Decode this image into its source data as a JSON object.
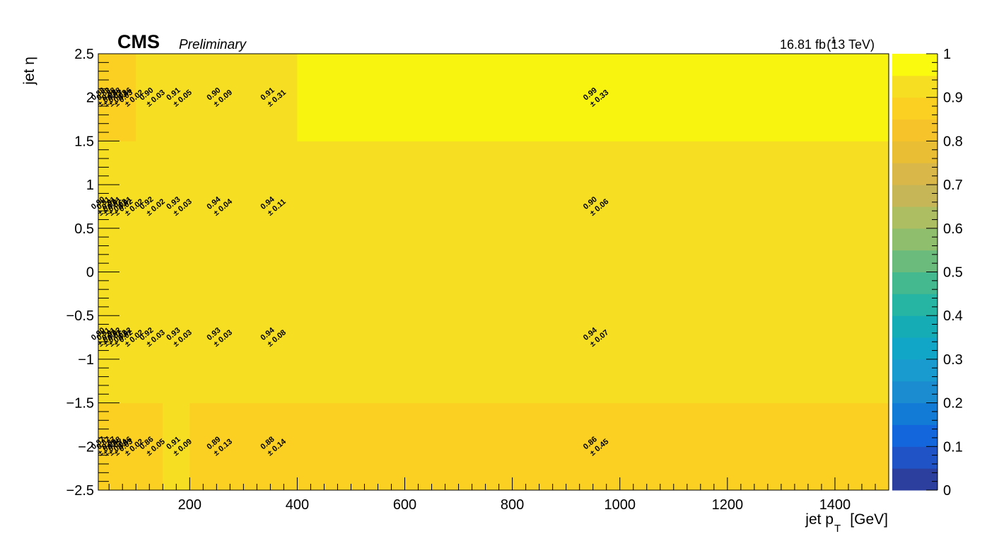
{
  "header": {
    "experiment": "CMS",
    "status": "Preliminary",
    "lumi_value": "16.81 fb",
    "lumi_exp": "-1",
    "energy": "(13 TeV)"
  },
  "chart_data": {
    "type": "heatmap",
    "title": "",
    "xlabel_main": "jet p",
    "xlabel_sub": "T",
    "xlabel_unit": "[GeV]",
    "ylabel": "jet η",
    "xlim": [
      30,
      1500
    ],
    "ylim": [
      -2.5,
      2.5
    ],
    "zlim": [
      0,
      1
    ],
    "x_ticks": [
      200,
      400,
      600,
      800,
      1000,
      1200,
      1400
    ],
    "x_tick_labels": [
      "200",
      "400",
      "600",
      "800",
      "1000",
      "1200",
      "1400"
    ],
    "y_ticks": [
      -2.5,
      -2,
      -1.5,
      -1,
      -0.5,
      0,
      0.5,
      1,
      1.5,
      2,
      2.5
    ],
    "y_tick_labels": [
      "−2.5",
      "−2",
      "−1.5",
      "−1",
      "−0.5",
      "0",
      "0.5",
      "1",
      "1.5",
      "2",
      "2.5"
    ],
    "x_bin_edges": [
      30,
      40,
      50,
      60,
      70,
      100,
      150,
      200,
      300,
      400,
      1500
    ],
    "y_bin_edges": [
      -2.5,
      -1.5,
      0,
      1.5,
      2.5
    ],
    "eta_rows": [
      {
        "eta_low": -2.5,
        "eta_high": -1.5,
        "values": [
          0.87,
          0.87,
          0.87,
          0.88,
          0.86,
          0.86,
          0.91,
          0.89,
          0.88,
          0.86
        ],
        "errors": [
          0.05,
          0.05,
          0.04,
          0.03,
          0.02,
          0.05,
          0.09,
          0.13,
          0.14,
          0.45
        ]
      },
      {
        "eta_low": -1.5,
        "eta_high": 0,
        "values": [
          0.9,
          0.91,
          0.91,
          0.92,
          0.92,
          0.92,
          0.93,
          0.93,
          0.94,
          0.94
        ],
        "errors": [
          0.02,
          0.02,
          0.02,
          0.02,
          0.02,
          0.03,
          0.03,
          0.03,
          0.08,
          0.07
        ]
      },
      {
        "eta_low": 0,
        "eta_high": 1.5,
        "values": [
          0.9,
          0.91,
          0.91,
          0.91,
          0.91,
          0.92,
          0.93,
          0.94,
          0.94,
          0.9
        ],
        "errors": [
          0.02,
          0.02,
          0.02,
          0.02,
          0.02,
          0.02,
          0.03,
          0.04,
          0.11,
          0.06
        ]
      },
      {
        "eta_low": 1.5,
        "eta_high": 2.5,
        "values": [
          0.88,
          0.88,
          0.88,
          0.88,
          0.86,
          0.9,
          0.91,
          0.9,
          0.91,
          0.99
        ],
        "errors": [
          0.03,
          0.03,
          0.03,
          0.03,
          0.02,
          0.03,
          0.05,
          0.09,
          0.31,
          0.33
        ]
      }
    ],
    "colorbar": {
      "ticks": [
        0,
        0.1,
        0.2,
        0.3,
        0.4,
        0.5,
        0.6,
        0.7,
        0.8,
        0.9,
        1
      ],
      "tick_labels": [
        "0",
        "0.1",
        "0.2",
        "0.3",
        "0.4",
        "0.5",
        "0.6",
        "0.7",
        "0.8",
        "0.9",
        "1"
      ],
      "palette": [
        "#2d3f9e",
        "#1f53c6",
        "#1466dc",
        "#117bd6",
        "#1a8ccf",
        "#1a9bd0",
        "#11a5c7",
        "#16acb6",
        "#26b4a3",
        "#44b98f",
        "#6bbb7c",
        "#8fbf6d",
        "#adbd61",
        "#c6b658",
        "#d9b748",
        "#e9be35",
        "#f6c42a",
        "#fbd023",
        "#f6df22",
        "#f8f40f"
      ],
      "palette_top": "#f9fa0e"
    },
    "grid": false,
    "legend": "none"
  }
}
